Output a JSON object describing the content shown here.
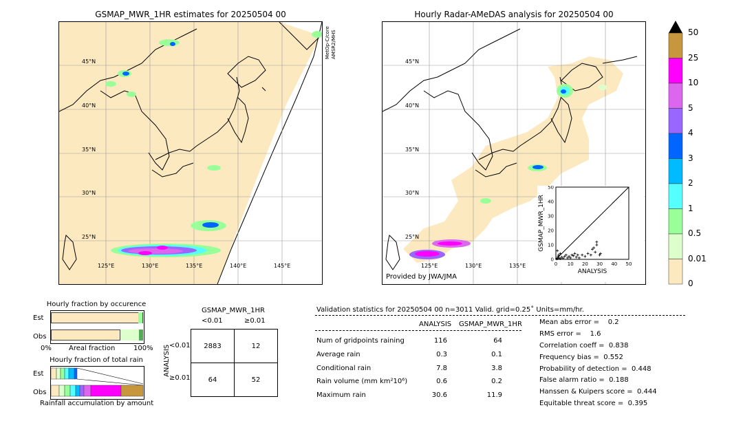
{
  "left_map": {
    "title": "GSMAP_MWR_1HR estimates for 20250504 00",
    "lat_labels": [
      "45°N",
      "40°N",
      "35°N",
      "30°N",
      "25°N"
    ],
    "lon_labels": [
      "125°E",
      "130°E",
      "135°E",
      "140°E",
      "145°E"
    ],
    "side_label": "MetOp-C/core AMSR2/MHS"
  },
  "right_map": {
    "title": "Hourly Radar-AMeDAS analysis for 20250504 00",
    "lat_labels": [
      "45°N",
      "40°N",
      "35°N",
      "30°N",
      "25°N"
    ],
    "lon_labels": [
      "125°E",
      "130°E",
      "135°E"
    ],
    "credit": "Provided by JWA/JMA"
  },
  "scatter": {
    "xlabel": "ANALYSIS",
    "ylabel": "GSMAP_MWR_1HR",
    "ticks": [
      "0",
      "10",
      "20",
      "30",
      "40",
      "50"
    ]
  },
  "colorbar": {
    "labels": [
      "50",
      "25",
      "10",
      "5",
      "4",
      "3",
      "2",
      "1",
      "0.5",
      "0.01",
      "0"
    ],
    "colors": [
      "#c8963c",
      "#ff00ff",
      "#dd66ee",
      "#9966ff",
      "#0066ff",
      "#00bbff",
      "#55ffff",
      "#99ff99",
      "#ddffcc",
      "#fde9c0"
    ],
    "extend_color": "#000000"
  },
  "fraction_occurrence": {
    "title": "Hourly fraction by occurence",
    "rows": [
      "Est",
      "Obs"
    ],
    "xlabel": "Areal fraction",
    "x_start": "0%",
    "x_end": "100%"
  },
  "fraction_total": {
    "title": "Hourly fraction of total rain",
    "rows": [
      "Est",
      "Obs"
    ],
    "xlabel": "Rainfall accumulation by amount"
  },
  "contingency": {
    "title": "GSMAP_MWR_1HR",
    "col_headers": [
      "<0.01",
      "≥0.01"
    ],
    "row_headers": [
      "<0.01",
      "≥0.01"
    ],
    "side_label": "ANALYSIS",
    "cells": [
      [
        "2883",
        "12"
      ],
      [
        "64",
        "52"
      ]
    ]
  },
  "validation": {
    "header": "Validation statistics for 20250504 00  n=3011 Valid. grid=0.25˚ Units=mm/hr.",
    "col_headers": [
      "ANALYSIS",
      "GSMAP_MWR_1HR"
    ],
    "rows": [
      {
        "label": "Num of gridpoints raining",
        "a": "116",
        "g": "64"
      },
      {
        "label": "Average rain",
        "a": "0.3",
        "g": "0.1"
      },
      {
        "label": "Conditional rain",
        "a": "7.8",
        "g": "3.8"
      },
      {
        "label": "Rain volume (mm km²10⁶)",
        "a": "0.6",
        "g": "0.2"
      },
      {
        "label": "Maximum rain",
        "a": "30.6",
        "g": "11.9"
      }
    ],
    "scores": [
      "Mean abs error =    0.2",
      "RMS error =    1.6",
      "Correlation coeff =  0.838",
      "Frequency bias =  0.552",
      "Probability of detection =  0.448",
      "False alarm ratio =  0.188",
      "Hanssen & Kuipers score =  0.444",
      "Equitable threat score =  0.395"
    ]
  },
  "chart_data": {
    "type": "scatter",
    "xlabel": "ANALYSIS",
    "ylabel": "GSMAP_MWR_1HR",
    "xlim": [
      0,
      50
    ],
    "ylim": [
      0,
      50
    ],
    "points": [
      [
        0.5,
        0.3
      ],
      [
        1,
        0.5
      ],
      [
        1.5,
        2
      ],
      [
        2,
        1
      ],
      [
        3,
        0.5
      ],
      [
        4,
        1.5
      ],
      [
        5,
        0.8
      ],
      [
        6,
        2
      ],
      [
        8,
        1
      ],
      [
        10,
        1
      ],
      [
        12,
        2.5
      ],
      [
        14,
        1.5
      ],
      [
        15,
        3
      ],
      [
        16,
        1
      ],
      [
        18,
        3
      ],
      [
        20,
        2
      ],
      [
        22,
        4
      ],
      [
        24,
        3
      ],
      [
        25,
        7
      ],
      [
        26,
        8
      ],
      [
        27,
        5
      ],
      [
        28,
        10
      ],
      [
        28,
        12
      ],
      [
        30,
        3
      ],
      [
        30.6,
        4
      ],
      [
        1,
        6
      ],
      [
        2,
        3
      ],
      [
        3,
        4
      ],
      [
        7,
        3
      ],
      [
        9,
        2
      ],
      [
        11,
        3
      ],
      [
        13,
        4
      ]
    ]
  }
}
